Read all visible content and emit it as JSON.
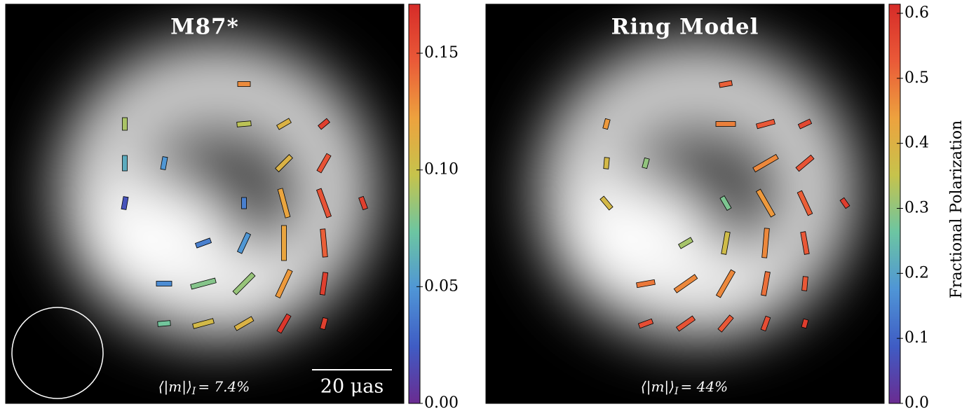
{
  "chart_data": [
    {
      "type": "polarization-map",
      "title": "M87*",
      "annotation": {
        "label": "⟨|m|⟩",
        "sub": "I",
        "value": "= 7.4%"
      },
      "scale_bar": "20 μas",
      "colormap": [
        "#6a2c91",
        "#3f5cc4",
        "#4f95d6",
        "#6cc5a2",
        "#c6c34c",
        "#eda23e",
        "#ea5a38",
        "#d62b28"
      ],
      "clim": [
        0,
        0.171
      ],
      "cticks": [
        {
          "value": 0,
          "label": "0.00"
        },
        0.05,
        {
          "value": 0.1,
          "label": "0.10"
        },
        0.15
      ],
      "vectors": {
        "x": [
          340,
          170,
          340,
          397,
          454,
          170,
          226,
          397,
          454,
          170,
          340,
          397,
          454,
          510,
          282,
          340,
          397,
          454,
          226,
          282,
          340,
          397,
          454,
          226,
          282,
          340,
          397,
          454
        ],
        "y": [
          114,
          171,
          171,
          171,
          171,
          227,
          227,
          227,
          227,
          284,
          284,
          284,
          284,
          284,
          341,
          341,
          341,
          341,
          399,
          399,
          399,
          399,
          399,
          456,
          456,
          456,
          456,
          456
        ],
        "angle": [
          90,
          0,
          85,
          60,
          50,
          0,
          10,
          45,
          30,
          10,
          0,
          -15,
          -20,
          -20,
          70,
          25,
          0,
          -5,
          90,
          75,
          45,
          25,
          8,
          85,
          75,
          60,
          30,
          15
        ],
        "length": [
          18,
          18,
          20,
          20,
          16,
          22,
          18,
          28,
          28,
          18,
          16,
          42,
          42,
          18,
          22,
          30,
          50,
          40,
          22,
          36,
          38,
          42,
          32,
          18,
          30,
          28,
          28,
          16
        ],
        "m": [
          0.13,
          0.09,
          0.095,
          0.11,
          0.16,
          0.06,
          0.05,
          0.11,
          0.15,
          0.02,
          0.04,
          0.12,
          0.15,
          0.16,
          0.04,
          0.05,
          0.12,
          0.145,
          0.045,
          0.08,
          0.085,
          0.125,
          0.16,
          0.075,
          0.105,
          0.11,
          0.165,
          0.16
        ]
      }
    },
    {
      "type": "polarization-map",
      "title": "Ring Model",
      "annotation": {
        "label": "⟨|m|⟩",
        "sub": "I",
        "value": "= 44%"
      },
      "colorbar_label": "Fractional Polarization",
      "colormap": [
        "#6a2c91",
        "#3f5cc4",
        "#4f95d6",
        "#6cc5a2",
        "#c6c34c",
        "#eda23e",
        "#ea5a38",
        "#d62b28"
      ],
      "clim": [
        0,
        0.614
      ],
      "cticks": [
        {
          "value": 0,
          "label": "0.0"
        },
        0.1,
        0.2,
        0.3,
        0.4,
        0.5,
        0.6
      ],
      "vectors": {
        "x": [
          342,
          172,
          342,
          399,
          455,
          172,
          228,
          399,
          455,
          172,
          342,
          399,
          455,
          512,
          285,
          342,
          399,
          455,
          228,
          285,
          342,
          399,
          455,
          228,
          285,
          342,
          399,
          455
        ],
        "y": [
          114,
          171,
          171,
          171,
          171,
          227,
          227,
          227,
          227,
          284,
          284,
          284,
          284,
          284,
          341,
          341,
          341,
          341,
          399,
          399,
          399,
          399,
          399,
          456,
          456,
          456,
          456,
          456
        ],
        "angle": [
          80,
          15,
          90,
          75,
          65,
          5,
          15,
          60,
          50,
          -40,
          -30,
          -30,
          -25,
          -35,
          60,
          10,
          5,
          -10,
          80,
          55,
          30,
          10,
          5,
          70,
          55,
          40,
          20,
          15
        ],
        "length": [
          18,
          14,
          28,
          26,
          18,
          16,
          14,
          38,
          28,
          20,
          20,
          42,
          36,
          14,
          20,
          32,
          42,
          32,
          26,
          36,
          42,
          34,
          20,
          20,
          28,
          26,
          20,
          12
        ],
        "m": [
          0.52,
          0.45,
          0.48,
          0.53,
          0.56,
          0.38,
          0.3,
          0.47,
          0.54,
          0.38,
          0.28,
          0.45,
          0.52,
          0.58,
          0.32,
          0.37,
          0.47,
          0.53,
          0.49,
          0.47,
          0.47,
          0.5,
          0.53,
          0.55,
          0.54,
          0.53,
          0.55,
          0.58
        ]
      }
    }
  ]
}
